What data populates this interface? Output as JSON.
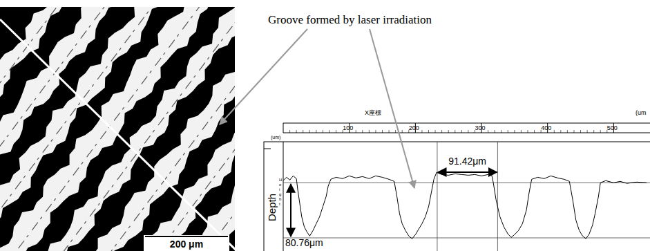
{
  "chart_data": {
    "type": "line",
    "annotation": "Groove formed by laser irradiation",
    "x_label": "X座標",
    "x_unit": "(um",
    "x_unit_left": "(um)",
    "y_axis_name": "Height",
    "y_label": "Depth",
    "x": [
      0,
      5,
      10,
      15,
      20,
      22,
      25,
      28,
      32,
      36,
      40,
      45,
      50,
      55,
      60,
      65,
      68,
      72,
      80,
      90,
      100,
      110,
      120,
      130,
      140,
      150,
      160,
      168,
      172,
      176,
      180,
      185,
      190,
      195,
      200,
      205,
      210,
      215,
      220,
      224,
      228,
      232,
      240,
      250,
      260,
      270,
      280,
      290,
      300,
      310,
      315,
      318,
      322,
      328,
      334,
      340,
      345,
      350,
      356,
      362,
      368,
      372,
      376,
      385,
      395,
      405,
      415,
      425,
      433,
      438,
      443,
      448,
      453,
      458,
      463,
      468,
      472,
      477,
      480,
      488,
      500,
      510,
      520,
      535,
      550
    ],
    "values": [
      3,
      8,
      4,
      10,
      6,
      -10,
      -30,
      -50,
      -65,
      -72,
      -78,
      -70,
      -60,
      -50,
      -35,
      -20,
      -5,
      5,
      8,
      6,
      10,
      7,
      9,
      6,
      10,
      8,
      5,
      2,
      -20,
      -45,
      -60,
      -70,
      -78,
      -82,
      -76,
      -68,
      -60,
      -50,
      -35,
      -15,
      5,
      15,
      12,
      11,
      13,
      12,
      11,
      12,
      10,
      12,
      13,
      0,
      -25,
      -50,
      -65,
      -75,
      -80,
      -76,
      -70,
      -60,
      -40,
      -15,
      5,
      8,
      6,
      10,
      7,
      5,
      2,
      -25,
      -55,
      -70,
      -78,
      -82,
      -75,
      -62,
      -45,
      -20,
      0,
      3,
      0,
      2,
      -1,
      1,
      0
    ],
    "color": "#000000",
    "xlim": [
      0,
      555
    ],
    "xticks": [
      100,
      200,
      300,
      400,
      500
    ],
    "ylim": [
      -100,
      60
    ],
    "tick_labels": "x",
    "hlines": [
      0,
      -80.76
    ],
    "vlines": [
      233,
      324.42
    ],
    "dimensions": [
      {
        "label": "91.42μm",
        "value": 91.42
      },
      {
        "label": "80.76μm",
        "value": 80.76
      }
    ]
  },
  "micrograph": {
    "scale_bar": "200 μm"
  }
}
